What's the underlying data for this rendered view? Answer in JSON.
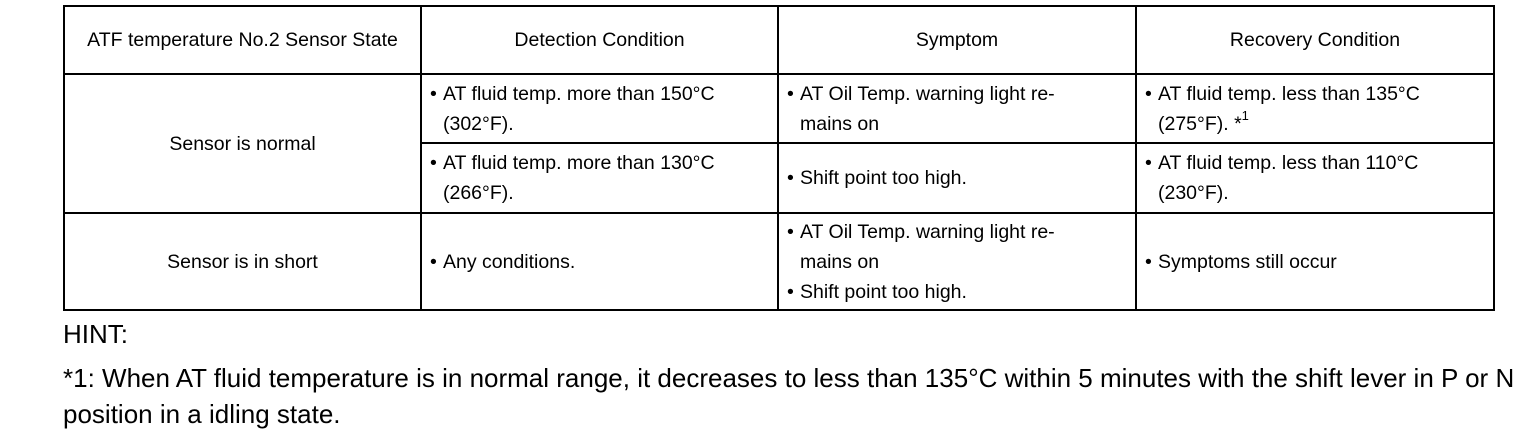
{
  "table": {
    "headers": [
      "ATF temperature No.2 Sensor State",
      "Detection Condition",
      "Symptom",
      "Recovery Condition"
    ],
    "bullet": "•",
    "sensor_normal": {
      "state": "Sensor is normal",
      "row1": {
        "detection": [
          "AT fluid temp. more than 150°C",
          "(302°F)."
        ],
        "symptom": [
          "AT Oil Temp. warning light re-",
          "mains on"
        ],
        "recovery": [
          "AT fluid temp. less than 135°C",
          "(275°F). *"
        ],
        "recovery_sup": "1"
      },
      "row2": {
        "detection": [
          "AT fluid temp. more than 130°C",
          "(266°F)."
        ],
        "symptom": "Shift point too high.",
        "recovery": [
          "AT fluid temp. less than 110°C",
          "(230°F)."
        ]
      }
    },
    "sensor_short": {
      "state": "Sensor is in short",
      "detection": "Any conditions.",
      "symptom1": [
        "AT Oil Temp. warning light re-",
        "mains on"
      ],
      "symptom2": "Shift point too high.",
      "recovery": "Symptoms still occur"
    }
  },
  "hint": {
    "title": "HINT:",
    "note": "*1: When AT fluid temperature is in normal range, it decreases to less than 135°C within 5 minutes with the shift lever in P or N position in a idling state."
  }
}
